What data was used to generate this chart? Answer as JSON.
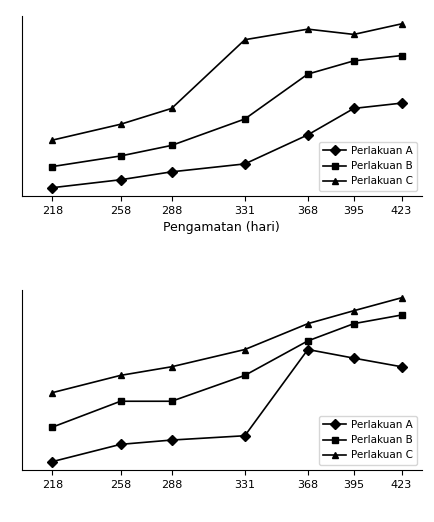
{
  "x": [
    218,
    258,
    288,
    331,
    368,
    395,
    423
  ],
  "top_chart": {
    "A": [
      12,
      15,
      18,
      21,
      32,
      42,
      44
    ],
    "B": [
      20,
      24,
      28,
      38,
      55,
      60,
      62
    ],
    "C": [
      30,
      36,
      42,
      68,
      72,
      70,
      74
    ]
  },
  "bottom_chart": {
    "A": [
      9,
      11,
      11.5,
      12,
      22,
      21,
      20
    ],
    "B": [
      13,
      16,
      16,
      19,
      23,
      25,
      26
    ],
    "C": [
      17,
      19,
      20,
      22,
      25,
      26.5,
      28
    ]
  },
  "xlabel": "Pengamatan (hari)",
  "legend_labels": [
    "Perlakuan A",
    "Perlakuan B",
    "Perlakuan C"
  ],
  "line_color": "#000000",
  "marker_A": "D",
  "marker_B": "s",
  "marker_C": "^",
  "markersize": 5,
  "linewidth": 1.2
}
